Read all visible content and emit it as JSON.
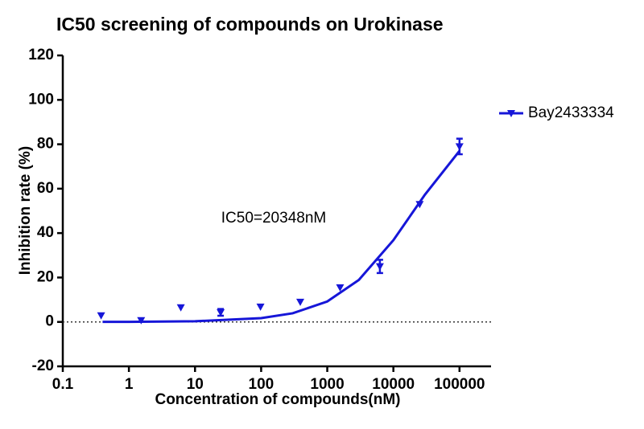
{
  "chart_data": {
    "type": "dose_response",
    "title": "IC50 screening of compounds on Urokinase",
    "x_label": "Concentration of compounds(nM)",
    "y_label": "Inhibition rate (%)",
    "annotation": "IC50=20348nM",
    "log_x": true,
    "xlim": [
      0.1,
      300000
    ],
    "xticks": [
      0.1,
      1,
      10,
      100,
      1000,
      10000,
      100000
    ],
    "ylim": [
      -20,
      120
    ],
    "yticks": [
      -20,
      0,
      20,
      40,
      60,
      80,
      100,
      120
    ],
    "zero_line": true,
    "legend_position": "right",
    "series": [
      {
        "name": "Bay2433334",
        "color": "#1616d8",
        "x": [
          0.38,
          1.53,
          6.1,
          24.4,
          97.7,
          390.6,
          1562.5,
          6250,
          25000,
          100000
        ],
        "values": [
          2.9,
          0.7,
          6.5,
          4.3,
          6.8,
          9,
          15.5,
          25,
          53,
          79
        ],
        "error": [
          null,
          null,
          null,
          1.5,
          null,
          null,
          null,
          3,
          null,
          3.5
        ]
      }
    ],
    "fit_curve": {
      "x": [
        0.4,
        1,
        10,
        100,
        300,
        1000,
        3000,
        10000,
        30000,
        100000
      ],
      "values": [
        0.03,
        0.05,
        0.3,
        1.7,
        3.9,
        9.2,
        18.9,
        36.8,
        57.3,
        77
      ]
    }
  }
}
